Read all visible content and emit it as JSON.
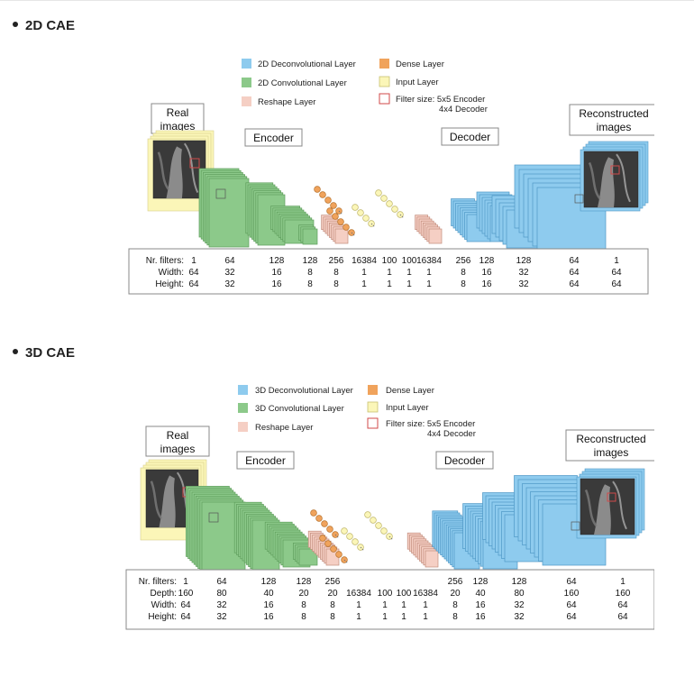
{
  "sections": [
    {
      "heading": "2D CAE",
      "legend": {
        "deconv": "2D Deconvolutional Layer",
        "conv": "2D Convolutional Layer",
        "reshape": "Reshape Layer",
        "dense": "Dense Layer",
        "input": "Input Layer",
        "filter_line1": "Filter size: 5x5 Encoder",
        "filter_line2": "4x4 Decoder"
      },
      "labels": {
        "real_line1": "Real",
        "real_line2": "images",
        "encoder": "Encoder",
        "decoder": "Decoder",
        "recon_line1": "Reconstructed",
        "recon_line2": "images"
      },
      "table": {
        "row_labels": [
          "Nr. filters:",
          "Width:",
          "Height:"
        ],
        "rows": [
          [
            "1",
            "64",
            "128",
            "128",
            "256",
            "16384",
            "100",
            "100",
            "16384",
            "256",
            "128",
            "128",
            "64",
            "1"
          ],
          [
            "64",
            "32",
            "16",
            "8",
            "8",
            "1",
            "1",
            "1",
            "1",
            "8",
            "16",
            "32",
            "64",
            "64"
          ],
          [
            "64",
            "32",
            "16",
            "8",
            "8",
            "1",
            "1",
            "1",
            "1",
            "8",
            "16",
            "32",
            "64",
            "64"
          ]
        ]
      }
    },
    {
      "heading": "3D CAE",
      "legend": {
        "deconv": "3D Deconvolutional Layer",
        "conv": "3D Convolutional Layer",
        "reshape": "Reshape Layer",
        "dense": "Dense Layer",
        "input": "Input Layer",
        "filter_line1": "Filter size: 5x5 Encoder",
        "filter_line2": "4x4 Decoder"
      },
      "labels": {
        "real_line1": "Real",
        "real_line2": "images",
        "encoder": "Encoder",
        "decoder": "Decoder",
        "recon_line1": "Reconstructed",
        "recon_line2": "images"
      },
      "table": {
        "row_labels": [
          "Nr. filters:",
          "Depth:",
          "Width:",
          "Height:"
        ],
        "rows": [
          [
            "1",
            "64",
            "128",
            "128",
            "256",
            "",
            "",
            "",
            "",
            "256",
            "128",
            "128",
            "64",
            "1"
          ],
          [
            "160",
            "80",
            "40",
            "20",
            "20",
            "16384",
            "100",
            "100",
            "16384",
            "20",
            "40",
            "80",
            "160",
            "160"
          ],
          [
            "64",
            "32",
            "16",
            "8",
            "8",
            "1",
            "1",
            "1",
            "1",
            "8",
            "16",
            "32",
            "64",
            "64"
          ],
          [
            "64",
            "32",
            "16",
            "8",
            "8",
            "1",
            "1",
            "1",
            "1",
            "8",
            "16",
            "32",
            "64",
            "64"
          ]
        ]
      }
    }
  ],
  "colors": {
    "deconv": "#8ecbee",
    "conv": "#8cc98a",
    "reshape": "#f5cfc4",
    "dense": "#f0a35c",
    "input": "#fbf6b8",
    "filter": "#d04a4a"
  }
}
